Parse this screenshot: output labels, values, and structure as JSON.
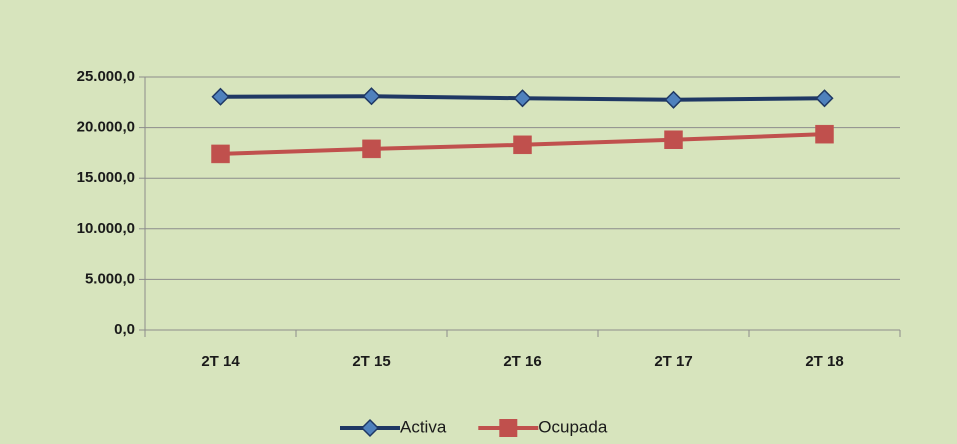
{
  "chart_data": {
    "type": "line",
    "categories": [
      "2T 14",
      "2T 15",
      "2T 16",
      "2T 17",
      "2T 18"
    ],
    "series": [
      {
        "name": "Activa",
        "color": "#1f3864",
        "marker_color": "#4f81bd",
        "marker": "diamond",
        "values": [
          23050,
          23100,
          22900,
          22750,
          22900
        ]
      },
      {
        "name": "Ocupada",
        "color": "#c0504d",
        "marker_color": "#c0504d",
        "marker": "square",
        "values": [
          17400,
          17900,
          18300,
          18800,
          19350
        ]
      }
    ],
    "ylim": [
      0,
      25000
    ],
    "yticks": [
      {
        "value": 0,
        "label": "0,0"
      },
      {
        "value": 5000,
        "label": "5.000,0"
      },
      {
        "value": 10000,
        "label": "10.000,0"
      },
      {
        "value": 15000,
        "label": "15.000,0"
      },
      {
        "value": 20000,
        "label": "20.000,0"
      },
      {
        "value": 25000,
        "label": "25.000,0"
      }
    ],
    "grid": true,
    "legend": "bottom",
    "background": "#d7e4bd"
  }
}
